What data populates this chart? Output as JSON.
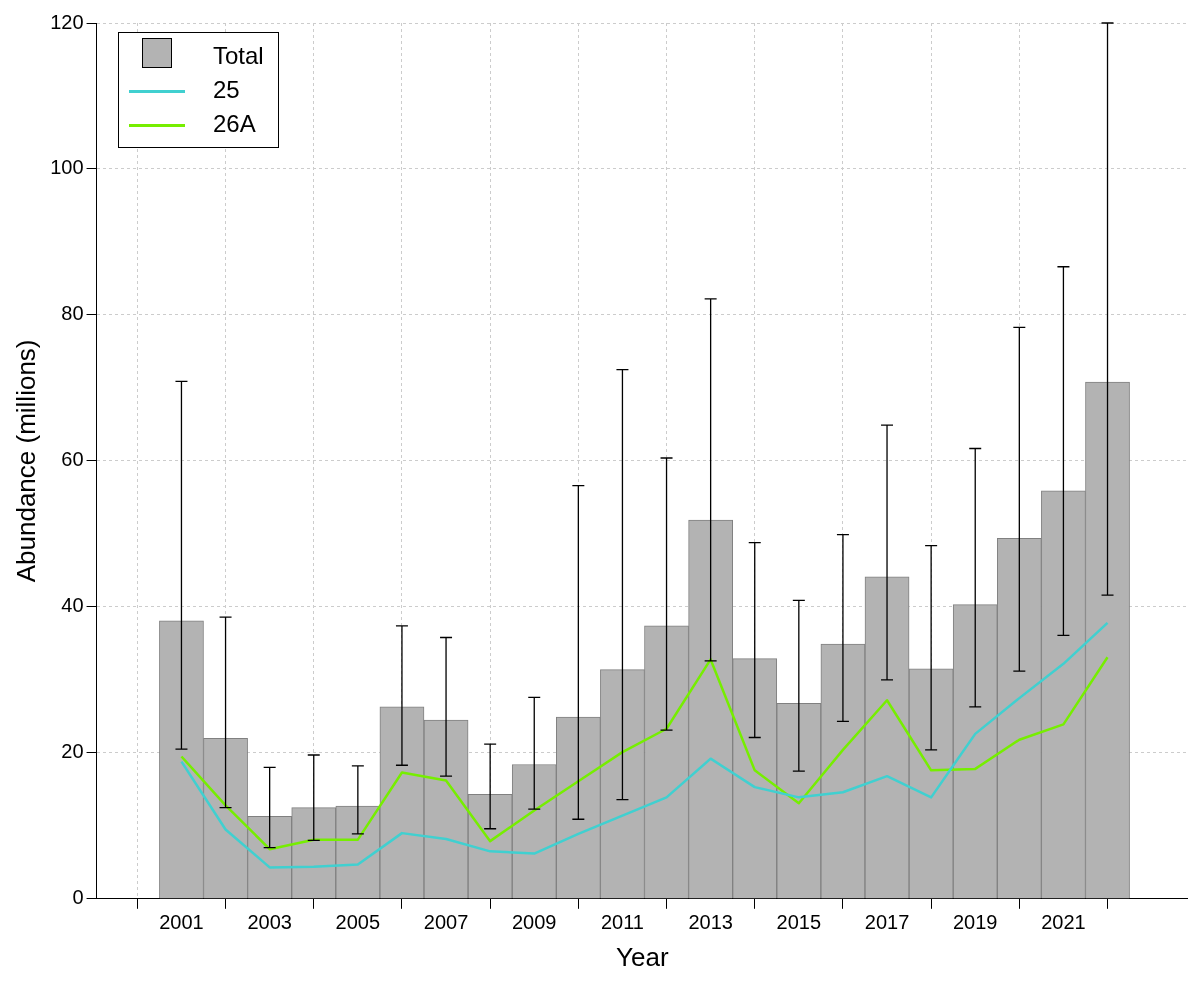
{
  "chart_data": {
    "type": "bar",
    "xlabel": "Year",
    "ylabel": "Abundance (millions)",
    "x": [
      2001,
      2002,
      2003,
      2004,
      2005,
      2006,
      2007,
      2008,
      2009,
      2010,
      2011,
      2012,
      2013,
      2014,
      2015,
      2016,
      2017,
      2018,
      2019,
      2020,
      2021,
      2022
    ],
    "xlim": [
      2000.2,
      2022.7
    ],
    "xticks": [
      2001,
      2003,
      2005,
      2007,
      2009,
      2011,
      2013,
      2015,
      2017,
      2019,
      2021
    ],
    "ylim": [
      0,
      120
    ],
    "yticks": [
      0,
      20,
      40,
      60,
      80,
      100,
      120
    ],
    "grid": true,
    "legend": "top left",
    "series": [
      {
        "name": "Total",
        "color": "#b3b3b3",
        "values": [
          38.1,
          22.0,
          11.3,
          12.5,
          12.7,
          26.3,
          24.5,
          14.3,
          18.4,
          24.9,
          31.4,
          37.4,
          51.9,
          32.9,
          26.8,
          34.9,
          44.1,
          31.5,
          40.3,
          49.4,
          55.9,
          70.8
        ],
        "errors": [
          [
            20.5,
            70.9
          ],
          [
            12.5,
            38.6
          ],
          [
            7.0,
            18.0
          ],
          [
            8.0,
            19.7
          ],
          [
            8.9,
            18.2
          ],
          [
            18.3,
            37.4
          ],
          [
            16.8,
            35.8
          ],
          [
            9.6,
            21.2
          ],
          [
            12.3,
            27.6
          ],
          [
            10.9,
            56.6
          ],
          [
            13.6,
            72.5
          ],
          [
            23.1,
            60.4
          ],
          [
            32.6,
            82.2
          ],
          [
            22.1,
            48.8
          ],
          [
            17.5,
            40.9
          ],
          [
            24.3,
            49.9
          ],
          [
            30.0,
            64.9
          ],
          [
            20.4,
            48.4
          ],
          [
            26.3,
            61.7
          ],
          [
            31.2,
            78.3
          ],
          [
            36.1,
            86.6
          ],
          [
            41.6,
            120
          ]
        ]
      },
      {
        "type": "line",
        "name": "25",
        "color": "#40d0d0",
        "values": [
          18.8,
          9.5,
          4.3,
          4.4,
          4.7,
          9.0,
          8.2,
          6.5,
          6.2,
          8.9,
          11.4,
          13.9,
          19.2,
          15.3,
          13.9,
          14.6,
          16.8,
          13.9,
          22.6,
          27.5,
          32.2,
          37.8
        ]
      },
      {
        "type": "line",
        "name": "26A",
        "color": "#76ee00",
        "values": [
          19.5,
          12.8,
          6.8,
          8.1,
          8.1,
          17.3,
          16.2,
          7.9,
          12.1,
          16.1,
          20.1,
          23.3,
          32.8,
          17.6,
          13.1,
          20.4,
          27.2,
          17.6,
          17.8,
          21.8,
          23.9,
          33.1
        ]
      }
    ]
  }
}
